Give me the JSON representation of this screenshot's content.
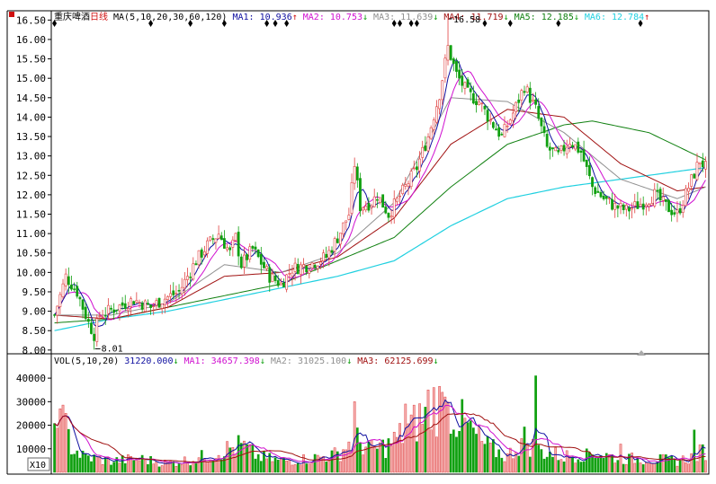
{
  "header": {
    "title": "重庆啤酒",
    "period": "日线",
    "ma_label": "MA(5,10,20,30,60,120)",
    "ma_values": [
      {
        "name": "MA1:",
        "value": "10.936",
        "arrow": "↑",
        "color": "#1010a0"
      },
      {
        "name": "MA2:",
        "value": "10.753",
        "arrow": "↓",
        "color": "#d010d0"
      },
      {
        "name": "MA3:",
        "value": "11.639",
        "arrow": "↓",
        "color": "#909090"
      },
      {
        "name": "MA4:",
        "value": "11.719",
        "arrow": "↓",
        "color": "#a01010"
      },
      {
        "name": "MA5:",
        "value": "12.185",
        "arrow": "↓",
        "color": "#108010"
      },
      {
        "name": "MA6:",
        "value": "12.784",
        "arrow": "↑",
        "color": "#20d0e0"
      }
    ]
  },
  "volume_header": {
    "label": "VOL(5,10,20)",
    "values": [
      {
        "name": "",
        "value": "31220.000",
        "arrow": "↓",
        "color": "#1010a0"
      },
      {
        "name": "MA1:",
        "value": "34657.398",
        "arrow": "↓",
        "color": "#d010d0"
      },
      {
        "name": "MA2:",
        "value": "31025.100",
        "arrow": "↓",
        "color": "#909090"
      },
      {
        "name": "MA3:",
        "value": "62125.699",
        "arrow": "↓",
        "color": "#a01010"
      }
    ]
  },
  "annotations": {
    "high": "16.58",
    "low": "8.01"
  },
  "multiplier_label": "X10",
  "colors": {
    "up": "#e04040",
    "down": "#10a010",
    "ma1": "#1010a0",
    "ma2": "#d010d0",
    "ma3": "#909090",
    "ma4": "#a01010",
    "ma5": "#108010",
    "ma6": "#20d0e0"
  },
  "chart_data": {
    "type": "candlestick",
    "price_ticks": [
      "16.50",
      "16.00",
      "15.50",
      "15.00",
      "14.50",
      "14.00",
      "13.50",
      "13.00",
      "12.50",
      "12.00",
      "11.50",
      "11.00",
      "10.50",
      "10.00",
      "9.50",
      "9.00",
      "8.50",
      "8.00"
    ],
    "volume_ticks": [
      "40000",
      "30000",
      "20000",
      "10000"
    ],
    "ylim_price": [
      7.95,
      16.6
    ],
    "ylim_volume": [
      0,
      45000
    ],
    "price_anchors": [
      [
        0,
        8.9
      ],
      [
        4,
        9.9
      ],
      [
        8,
        9.5
      ],
      [
        12,
        8.7
      ],
      [
        14,
        8.4
      ],
      [
        16,
        8.9
      ],
      [
        22,
        9.1
      ],
      [
        28,
        9.3
      ],
      [
        34,
        9.1
      ],
      [
        38,
        9.3
      ],
      [
        44,
        9.5
      ],
      [
        50,
        10.3
      ],
      [
        54,
        10.7
      ],
      [
        58,
        11.0
      ],
      [
        62,
        10.5
      ],
      [
        64,
        10.9
      ],
      [
        66,
        10.2
      ],
      [
        70,
        10.6
      ],
      [
        76,
        9.9
      ],
      [
        80,
        9.7
      ],
      [
        84,
        10.1
      ],
      [
        90,
        10.2
      ],
      [
        96,
        10.4
      ],
      [
        100,
        10.9
      ],
      [
        104,
        11.5
      ],
      [
        106,
        12.8
      ],
      [
        108,
        11.7
      ],
      [
        112,
        11.8
      ],
      [
        114,
        12.0
      ],
      [
        118,
        11.5
      ],
      [
        124,
        12.2
      ],
      [
        128,
        12.7
      ],
      [
        132,
        13.5
      ],
      [
        136,
        14.6
      ],
      [
        139,
        15.8
      ],
      [
        142,
        15.1
      ],
      [
        146,
        14.6
      ],
      [
        150,
        14.4
      ],
      [
        154,
        13.9
      ],
      [
        158,
        13.5
      ],
      [
        162,
        14.1
      ],
      [
        166,
        14.8
      ],
      [
        170,
        14.2
      ],
      [
        174,
        13.2
      ],
      [
        178,
        13.0
      ],
      [
        182,
        13.4
      ],
      [
        186,
        13.1
      ],
      [
        190,
        12.2
      ],
      [
        194,
        11.9
      ],
      [
        198,
        11.7
      ],
      [
        202,
        11.6
      ],
      [
        208,
        11.8
      ],
      [
        212,
        12.0
      ],
      [
        216,
        11.7
      ],
      [
        220,
        11.5
      ],
      [
        224,
        12.2
      ],
      [
        228,
        12.9
      ],
      [
        230,
        12.7
      ]
    ],
    "ma_anchors": {
      "MA3": [
        [
          0,
          8.9
        ],
        [
          20,
          8.9
        ],
        [
          40,
          9.2
        ],
        [
          60,
          10.2
        ],
        [
          80,
          10.0
        ],
        [
          100,
          10.5
        ],
        [
          120,
          11.8
        ],
        [
          140,
          14.5
        ],
        [
          160,
          14.4
        ],
        [
          180,
          13.6
        ],
        [
          200,
          12.4
        ],
        [
          220,
          11.9
        ],
        [
          230,
          12.2
        ]
      ],
      "MA4": [
        [
          0,
          8.9
        ],
        [
          20,
          8.8
        ],
        [
          40,
          9.1
        ],
        [
          60,
          9.9
        ],
        [
          80,
          10.0
        ],
        [
          100,
          10.4
        ],
        [
          120,
          11.4
        ],
        [
          140,
          13.3
        ],
        [
          160,
          14.2
        ],
        [
          180,
          14.0
        ],
        [
          200,
          12.8
        ],
        [
          220,
          12.1
        ],
        [
          230,
          12.2
        ]
      ],
      "MA5": [
        [
          0,
          8.7
        ],
        [
          20,
          8.8
        ],
        [
          40,
          9.1
        ],
        [
          60,
          9.4
        ],
        [
          80,
          9.7
        ],
        [
          100,
          10.3
        ],
        [
          120,
          10.9
        ],
        [
          140,
          12.2
        ],
        [
          160,
          13.3
        ],
        [
          180,
          13.8
        ],
        [
          190,
          13.9
        ],
        [
          210,
          13.6
        ],
        [
          230,
          12.9
        ]
      ],
      "MA6": [
        [
          0,
          8.5
        ],
        [
          20,
          8.8
        ],
        [
          40,
          9.0
        ],
        [
          60,
          9.3
        ],
        [
          80,
          9.6
        ],
        [
          100,
          9.9
        ],
        [
          120,
          10.3
        ],
        [
          140,
          11.2
        ],
        [
          160,
          11.9
        ],
        [
          180,
          12.2
        ],
        [
          200,
          12.4
        ],
        [
          220,
          12.6
        ],
        [
          230,
          12.7
        ]
      ]
    },
    "volume_anchors": [
      [
        0,
        15000
      ],
      [
        2,
        26000
      ],
      [
        6,
        12000
      ],
      [
        10,
        7000
      ],
      [
        20,
        5000
      ],
      [
        30,
        6000
      ],
      [
        40,
        4000
      ],
      [
        50,
        6000
      ],
      [
        60,
        10000
      ],
      [
        66,
        12000
      ],
      [
        72,
        7000
      ],
      [
        80,
        5000
      ],
      [
        90,
        6000
      ],
      [
        100,
        8000
      ],
      [
        106,
        15000
      ],
      [
        112,
        10000
      ],
      [
        118,
        12000
      ],
      [
        124,
        18000
      ],
      [
        130,
        25000
      ],
      [
        136,
        30000
      ],
      [
        140,
        27000
      ],
      [
        146,
        20000
      ],
      [
        152,
        12000
      ],
      [
        160,
        7000
      ],
      [
        166,
        15000
      ],
      [
        170,
        10000
      ],
      [
        180,
        7000
      ],
      [
        190,
        9000
      ],
      [
        200,
        6000
      ],
      [
        210,
        6000
      ],
      [
        220,
        5000
      ],
      [
        226,
        7000
      ],
      [
        230,
        10000
      ]
    ],
    "volume_spikes": [
      [
        2,
        27000
      ],
      [
        106,
        30000
      ],
      [
        124,
        29000
      ],
      [
        132,
        35000
      ],
      [
        134,
        36000
      ],
      [
        138,
        32000
      ],
      [
        170,
        41000
      ],
      [
        188,
        10000
      ],
      [
        200,
        12000
      ],
      [
        226,
        18000
      ]
    ],
    "num_bars": 231
  }
}
